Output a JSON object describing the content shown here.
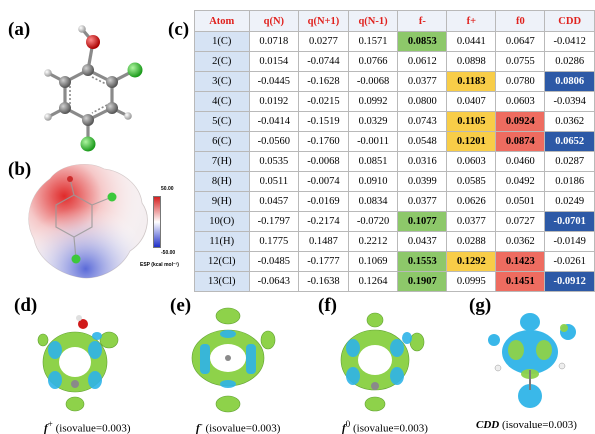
{
  "panel_labels": {
    "a": "(a)",
    "b": "(b)",
    "c": "(c)",
    "d": "(d)",
    "e": "(e)",
    "f": "(f)",
    "g": "(g)"
  },
  "esp": {
    "max": "50.00",
    "min": "-50.00",
    "label": "ESP (kcal mol⁻¹)"
  },
  "table": {
    "headers": [
      "Atom",
      "q(N)",
      "q(N+1)",
      "q(N-1)",
      "f-",
      "f+",
      "f0",
      "CDD"
    ],
    "rows": [
      {
        "cells": [
          "1(C)",
          "0.0718",
          "0.0277",
          "0.1571",
          "0.0853",
          "0.0441",
          "0.0647",
          "-0.0412"
        ],
        "hl": [
          "",
          "",
          "",
          "",
          "green",
          "",
          "",
          ""
        ]
      },
      {
        "cells": [
          "2(C)",
          "0.0154",
          "-0.0744",
          "0.0766",
          "0.0612",
          "0.0898",
          "0.0755",
          "0.0286"
        ],
        "hl": [
          "",
          "",
          "",
          "",
          "",
          "",
          "",
          ""
        ]
      },
      {
        "cells": [
          "3(C)",
          "-0.0445",
          "-0.1628",
          "-0.0068",
          "0.0377",
          "0.1183",
          "0.0780",
          "0.0806"
        ],
        "hl": [
          "",
          "",
          "",
          "",
          "",
          "yellow",
          "",
          "blue"
        ]
      },
      {
        "cells": [
          "4(C)",
          "0.0192",
          "-0.0215",
          "0.0992",
          "0.0800",
          "0.0407",
          "0.0603",
          "-0.0394"
        ],
        "hl": [
          "",
          "",
          "",
          "",
          "",
          "",
          "",
          ""
        ]
      },
      {
        "cells": [
          "5(C)",
          "-0.0414",
          "-0.1519",
          "0.0329",
          "0.0743",
          "0.1105",
          "0.0924",
          "0.0362"
        ],
        "hl": [
          "",
          "",
          "",
          "",
          "",
          "yellow",
          "red",
          ""
        ]
      },
      {
        "cells": [
          "6(C)",
          "-0.0560",
          "-0.1760",
          "-0.0011",
          "0.0548",
          "0.1201",
          "0.0874",
          "0.0652"
        ],
        "hl": [
          "",
          "",
          "",
          "",
          "",
          "yellow",
          "red",
          "blue"
        ]
      },
      {
        "cells": [
          "7(H)",
          "0.0535",
          "-0.0068",
          "0.0851",
          "0.0316",
          "0.0603",
          "0.0460",
          "0.0287"
        ],
        "hl": [
          "",
          "",
          "",
          "",
          "",
          "",
          "",
          ""
        ]
      },
      {
        "cells": [
          "8(H)",
          "0.0511",
          "-0.0074",
          "0.0910",
          "0.0399",
          "0.0585",
          "0.0492",
          "0.0186"
        ],
        "hl": [
          "",
          "",
          "",
          "",
          "",
          "",
          "",
          ""
        ]
      },
      {
        "cells": [
          "9(H)",
          "0.0457",
          "-0.0169",
          "0.0834",
          "0.0377",
          "0.0626",
          "0.0501",
          "0.0249"
        ],
        "hl": [
          "",
          "",
          "",
          "",
          "",
          "",
          "",
          ""
        ]
      },
      {
        "cells": [
          "10(O)",
          "-0.1797",
          "-0.2174",
          "-0.0720",
          "0.1077",
          "0.0377",
          "0.0727",
          "-0.0701"
        ],
        "hl": [
          "",
          "",
          "",
          "",
          "green",
          "",
          "",
          "blue"
        ]
      },
      {
        "cells": [
          "11(H)",
          "0.1775",
          "0.1487",
          "0.2212",
          "0.0437",
          "0.0288",
          "0.0362",
          "-0.0149"
        ],
        "hl": [
          "",
          "",
          "",
          "",
          "",
          "",
          "",
          ""
        ]
      },
      {
        "cells": [
          "12(Cl)",
          "-0.0485",
          "-0.1777",
          "0.1069",
          "0.1553",
          "0.1292",
          "0.1423",
          "-0.0261"
        ],
        "hl": [
          "",
          "",
          "",
          "",
          "green",
          "yellow",
          "red",
          ""
        ]
      },
      {
        "cells": [
          "13(Cl)",
          "-0.0643",
          "-0.1638",
          "0.1264",
          "0.1907",
          "0.0995",
          "0.1451",
          "-0.0912"
        ],
        "hl": [
          "",
          "",
          "",
          "",
          "green",
          "",
          "red",
          "blue"
        ]
      }
    ]
  },
  "captions": {
    "d": {
      "sym": "f",
      "sup": "+",
      "text": " (isovalue=0.003)"
    },
    "e": {
      "sym": "f",
      "sup": "-",
      "text": " (isovalue=0.003)"
    },
    "f": {
      "sym": "f",
      "sup": "0",
      "text": " (isovalue=0.003)"
    },
    "g": {
      "sym": "CDD",
      "sup": "",
      "text": " (isovalue=0.003)"
    }
  },
  "colors": {
    "header_text": "#e0221e",
    "atom_bg": "#d6e3f4",
    "green": "#8dc86a",
    "yellow": "#f8cd48",
    "red": "#ee6c60",
    "blue": "#2d59a6",
    "lobe_green": "#8ed24a",
    "lobe_cyan": "#2fb4e8",
    "oxygen": "#d01a1a",
    "chlorine": "#3cc83c",
    "carbon": "#7a7a7a"
  }
}
